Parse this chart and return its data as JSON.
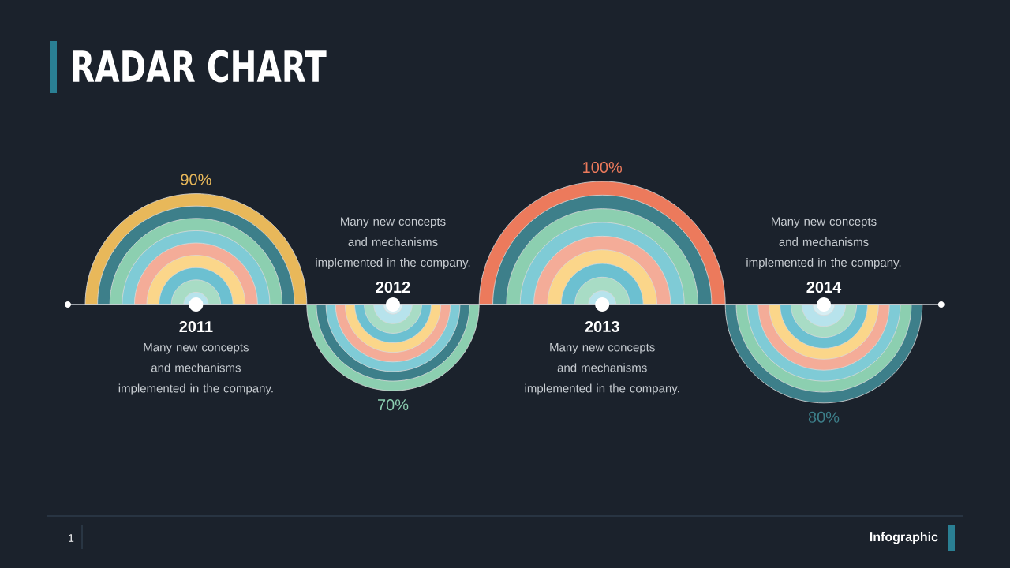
{
  "chart_data": {
    "type": "other",
    "title": "RADAR CHART",
    "categories": [
      "2011",
      "2012",
      "2013",
      "2014"
    ],
    "values": [
      90,
      70,
      100,
      80
    ],
    "value_labels": [
      "90%",
      "70%",
      "100%",
      "80%"
    ],
    "colors": [
      "#e8b85a",
      "#8ccfb0",
      "#ec7a5c",
      "#3d7f8a"
    ],
    "annotations": [
      "Many new concepts and mechanisms implemented in the company.",
      "Many new concepts and mechanisms implemented in the company.",
      "Many new concepts and mechanisms implemented in the company.",
      "Many new concepts and mechanisms implemented in the company.",
      "1",
      "Infographic"
    ]
  }
}
